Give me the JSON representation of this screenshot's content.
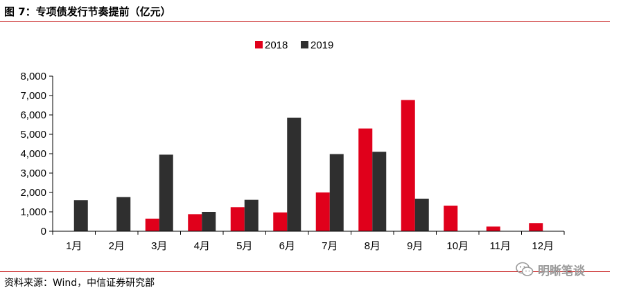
{
  "header": {
    "title": "图 7：专项债发行节奏提前（亿元）"
  },
  "footer": {
    "source": "资料来源：Wind，中信证券研究部",
    "watermark": "明晰笔谈",
    "watermark_icon": "wechat-icon"
  },
  "colors": {
    "rule": "#c00000",
    "series_2018": "#e0001b",
    "series_2019": "#2f2f2f"
  },
  "chart_data": {
    "type": "bar",
    "categories": [
      "1月",
      "2月",
      "3月",
      "4月",
      "5月",
      "6月",
      "7月",
      "8月",
      "9月",
      "10月",
      "11月",
      "12月"
    ],
    "series": [
      {
        "name": "2018",
        "color": "#e0001b",
        "values": [
          0,
          0,
          650,
          880,
          1240,
          970,
          2000,
          5300,
          6770,
          1320,
          240,
          420
        ]
      },
      {
        "name": "2019",
        "color": "#2f2f2f",
        "values": [
          1600,
          1760,
          3950,
          1000,
          1620,
          5860,
          3980,
          4100,
          1680,
          0,
          0,
          0
        ]
      }
    ],
    "yticks": [
      "0",
      "1,000",
      "2,000",
      "3,000",
      "4,000",
      "5,000",
      "6,000",
      "7,000",
      "8,000"
    ],
    "ylim": [
      0,
      8000
    ],
    "legend_position": "top-center",
    "grid": false
  }
}
